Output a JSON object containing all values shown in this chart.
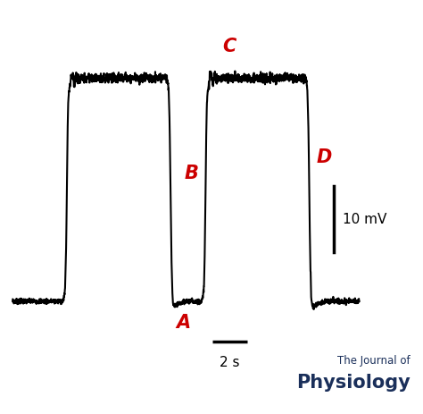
{
  "background_color": "#ffffff",
  "line_color": "#000000",
  "line_width": 1.5,
  "label_color": "#cc0000",
  "label_A": "A",
  "label_B": "B",
  "label_C": "C",
  "label_D": "D",
  "label_fontsize": 15,
  "scale_label_10mV": "10 mV",
  "scale_label_2s": "2 s",
  "journal_line1": "The Journal of",
  "journal_line2": "Physiology",
  "journal_color": "#1a2f5a",
  "noise_amplitude": 0.004,
  "plateau_noise": 0.006,
  "resting_level": 0.12,
  "plateau_level": 0.82,
  "figsize": [
    4.74,
    4.63
  ],
  "dpi": 100
}
